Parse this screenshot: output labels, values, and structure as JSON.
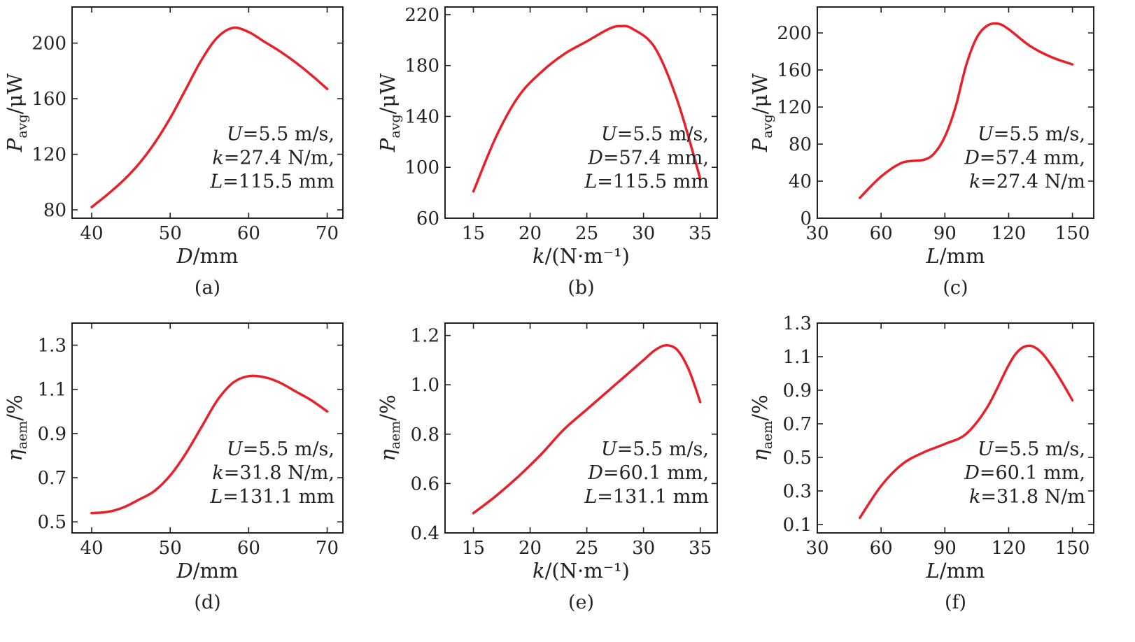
{
  "colors": {
    "series": "#e8202a",
    "axis": "#222222",
    "background": "#ffffff"
  },
  "chart_data": [
    {
      "type": "line",
      "caption": "(a)",
      "xlabel": {
        "italic": "D",
        "rest": "/mm"
      },
      "ylabel": {
        "italic": "P",
        "sub": "avg",
        "rest": "/μW"
      },
      "xlim": [
        37.5,
        72
      ],
      "ylim": [
        74,
        226
      ],
      "xticks": [
        40,
        50,
        60,
        70
      ],
      "yticks": [
        80,
        120,
        160,
        200
      ],
      "annotations": [
        {
          "italic": "U",
          "rest": "=5.5 m/s,"
        },
        {
          "italic": "k",
          "rest": "=27.4 N/m,"
        },
        {
          "italic": "L",
          "rest": "=115.5 mm"
        }
      ],
      "x": [
        40,
        42,
        44,
        46,
        48,
        50,
        52,
        54,
        56,
        58,
        60,
        62,
        64,
        66,
        68,
        70
      ],
      "y": [
        82,
        91,
        101,
        113,
        128,
        146,
        167,
        188,
        204,
        211,
        208,
        201,
        194,
        186,
        177,
        167
      ]
    },
    {
      "type": "line",
      "caption": "(b)",
      "xlabel": {
        "italic": "k",
        "rest": "/(N·m⁻¹)"
      },
      "ylabel": {
        "italic": "P",
        "sub": "avg",
        "rest": "/μW"
      },
      "xlim": [
        12.5,
        36.5
      ],
      "ylim": [
        60,
        226
      ],
      "xticks": [
        15,
        20,
        25,
        30,
        35
      ],
      "yticks": [
        60,
        100,
        140,
        180,
        220
      ],
      "annotations": [
        {
          "italic": "U",
          "rest": "=5.5 m/s,"
        },
        {
          "italic": "D",
          "rest": "=57.4 mm,"
        },
        {
          "italic": "L",
          "rest": "=115.5 mm"
        }
      ],
      "x": [
        15,
        17,
        19,
        21,
        23,
        25,
        27,
        28,
        29,
        31,
        33,
        35
      ],
      "y": [
        81,
        124,
        156,
        175,
        189,
        199,
        209,
        211,
        209,
        194,
        152,
        91
      ]
    },
    {
      "type": "line",
      "caption": "(c)",
      "xlabel": {
        "italic": "L",
        "rest": "/mm"
      },
      "ylabel": {
        "italic": "P",
        "sub": "avg",
        "rest": "/μW"
      },
      "xlim": [
        30,
        160
      ],
      "ylim": [
        0,
        228
      ],
      "xticks": [
        30,
        60,
        90,
        120,
        150
      ],
      "yticks": [
        0,
        40,
        80,
        120,
        160,
        200
      ],
      "annotations": [
        {
          "italic": "U",
          "rest": "=5.5 m/s,"
        },
        {
          "italic": "D",
          "rest": "=57.4 mm,"
        },
        {
          "italic": "k",
          "rest": "=27.4 N/m"
        }
      ],
      "x": [
        50,
        60,
        70,
        80,
        85,
        90,
        95,
        100,
        105,
        110,
        115,
        120,
        130,
        140,
        150
      ],
      "y": [
        22,
        45,
        60,
        63,
        70,
        88,
        120,
        165,
        195,
        208,
        210,
        204,
        186,
        174,
        166
      ]
    },
    {
      "type": "line",
      "caption": "(d)",
      "xlabel": {
        "italic": "D",
        "rest": "/mm"
      },
      "ylabel": {
        "italic": "η",
        "sub": "aem",
        "rest": "/%"
      },
      "xlim": [
        37.5,
        72
      ],
      "ylim": [
        0.45,
        1.4
      ],
      "xticks": [
        40,
        50,
        60,
        70
      ],
      "yticks": [
        0.5,
        0.7,
        0.9,
        1.1,
        1.3
      ],
      "annotations": [
        {
          "italic": "U",
          "rest": "=5.5 m/s,"
        },
        {
          "italic": "k",
          "rest": "=31.8 N/m,"
        },
        {
          "italic": "L",
          "rest": "=131.1 mm"
        }
      ],
      "x": [
        40,
        42,
        44,
        46,
        48,
        50,
        52,
        54,
        56,
        58,
        60,
        62,
        64,
        66,
        68,
        70
      ],
      "y": [
        0.54,
        0.545,
        0.565,
        0.6,
        0.64,
        0.71,
        0.81,
        0.93,
        1.05,
        1.13,
        1.16,
        1.155,
        1.13,
        1.09,
        1.05,
        1.0
      ]
    },
    {
      "type": "line",
      "caption": "(e)",
      "xlabel": {
        "italic": "k",
        "rest": "/(N·m⁻¹)"
      },
      "ylabel": {
        "italic": "η",
        "sub": "aem",
        "rest": "/%"
      },
      "xlim": [
        12.5,
        36.5
      ],
      "ylim": [
        0.4,
        1.25
      ],
      "xticks": [
        15,
        20,
        25,
        30,
        35
      ],
      "yticks": [
        0.4,
        0.6,
        0.8,
        1.0,
        1.2
      ],
      "annotations": [
        {
          "italic": "U",
          "rest": "=5.5 m/s,"
        },
        {
          "italic": "D",
          "rest": "=60.1 mm,"
        },
        {
          "italic": "L",
          "rest": "=131.1 mm"
        }
      ],
      "x": [
        15,
        17,
        19,
        21,
        23,
        25,
        27,
        29,
        30,
        31,
        32,
        33,
        34,
        35
      ],
      "y": [
        0.48,
        0.55,
        0.63,
        0.72,
        0.82,
        0.9,
        0.98,
        1.06,
        1.1,
        1.14,
        1.16,
        1.14,
        1.06,
        0.93
      ]
    },
    {
      "type": "line",
      "caption": "(f)",
      "xlabel": {
        "italic": "L",
        "rest": "/mm"
      },
      "ylabel": {
        "italic": "η",
        "sub": "aem",
        "rest": "/%"
      },
      "xlim": [
        30,
        160
      ],
      "ylim": [
        0.05,
        1.3
      ],
      "xticks": [
        30,
        60,
        90,
        120,
        150
      ],
      "yticks": [
        0.1,
        0.3,
        0.5,
        0.7,
        0.9,
        1.1,
        1.3
      ],
      "annotations": [
        {
          "italic": "U",
          "rest": "=5.5 m/s,"
        },
        {
          "italic": "D",
          "rest": "=60.1 mm,"
        },
        {
          "italic": "k",
          "rest": "=31.8 N/m"
        }
      ],
      "x": [
        50,
        60,
        70,
        80,
        90,
        100,
        110,
        120,
        125,
        130,
        135,
        140,
        145,
        150
      ],
      "y": [
        0.14,
        0.33,
        0.46,
        0.53,
        0.58,
        0.64,
        0.8,
        1.05,
        1.14,
        1.165,
        1.13,
        1.05,
        0.95,
        0.84
      ]
    }
  ]
}
